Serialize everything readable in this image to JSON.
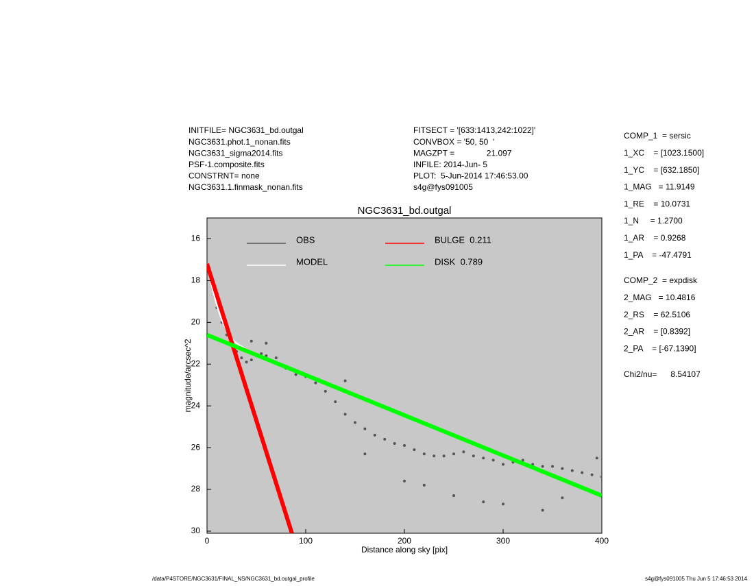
{
  "header": {
    "left": [
      "INITFILE= NGC3631_bd.outgal",
      "NGC3631.phot.1_nonan.fits",
      "NGC3631_sigma2014.fits",
      "PSF-1.composite.fits",
      "CONSTRNT= none",
      "NGC3631.1.finmask_nonan.fits"
    ],
    "middle": [
      "FITSECT = '[633:1413,242:1022]'",
      "CONVBOX = '50, 50  '",
      "MAGZPT =              21.097",
      "INFILE: 2014-Jun- 5",
      "PLOT:  5-Jun-2014 17:46:53.00",
      "s4g@fys091005"
    ]
  },
  "params": {
    "comp1": [
      "COMP_1  = sersic",
      "1_XC    = [1023.1500]",
      "1_YC    = [632.1850]",
      "1_MAG   = 11.9149",
      "1_RE    = 10.0731",
      "1_N     = 1.2700",
      "1_AR    = 0.9268",
      "1_PA    = -47.4791"
    ],
    "comp2": [
      "COMP_2  = expdisk",
      "2_MAG   = 10.4816",
      "2_RS    = 62.5106",
      "2_AR    = [0.8392]",
      "2_PA    = [-67.1390]"
    ],
    "chi": "Chi2/nu=      8.54107"
  },
  "footer": {
    "left": "/data/P4STORE/NGC3631/FINAL_NS/NGC3631_bd.outgal_profile",
    "right": "s4g@fys091005  Thu Jun  5 17:46:53 2014"
  },
  "chart_data": {
    "type": "scatter",
    "title": "NGC3631_bd.outgal",
    "x_label": "Distance along sky [pix]",
    "y_label": "magnitude/arcsec^2",
    "xlim": [
      0,
      400
    ],
    "ylim": [
      30.1,
      15
    ],
    "xticks": [
      0,
      100,
      200,
      300,
      400
    ],
    "yticks": [
      16,
      18,
      20,
      22,
      24,
      26,
      28,
      30
    ],
    "background": "#c8c8c8",
    "series": [
      {
        "name": "OBS",
        "kind": "points",
        "color": "#555555",
        "x": [
          5,
          10,
          15,
          20,
          25,
          30,
          35,
          40,
          45,
          50,
          55,
          60,
          70,
          80,
          90,
          100,
          110,
          120,
          130,
          140,
          150,
          160,
          170,
          180,
          190,
          200,
          210,
          220,
          230,
          240,
          250,
          260,
          270,
          280,
          290,
          300,
          310,
          320,
          330,
          340,
          350,
          360,
          370,
          380,
          390,
          400,
          45,
          60,
          140,
          160,
          200,
          220,
          250,
          280,
          300,
          340,
          360,
          380,
          395
        ],
        "values": [
          18.1,
          19.3,
          20.0,
          20.6,
          21.0,
          21.4,
          21.7,
          21.9,
          21.8,
          21.6,
          21.5,
          21.6,
          21.7,
          22.2,
          22.5,
          22.6,
          22.9,
          23.3,
          23.8,
          24.4,
          24.8,
          25.1,
          25.4,
          25.6,
          25.8,
          25.9,
          26.1,
          26.3,
          26.4,
          26.4,
          26.3,
          26.2,
          26.4,
          26.5,
          26.6,
          26.8,
          26.7,
          26.6,
          26.8,
          26.9,
          26.9,
          27.0,
          27.1,
          27.2,
          27.3,
          27.4,
          20.9,
          21.0,
          22.8,
          26.3,
          27.6,
          27.8,
          28.3,
          28.6,
          28.7,
          29.0,
          28.4,
          27.9,
          26.5
        ]
      },
      {
        "name": "MODEL",
        "kind": "line",
        "color": "#ffffff",
        "x": [
          0,
          5,
          10,
          15,
          20,
          25,
          30,
          40,
          60,
          100,
          200,
          300,
          400
        ],
        "values": [
          17.2,
          18.3,
          19.2,
          19.9,
          20.4,
          20.8,
          21.0,
          21.3,
          21.7,
          22.5,
          24.5,
          26.4,
          28.3
        ]
      },
      {
        "name": "BULGE  0.211",
        "kind": "band",
        "color": "#ff0000",
        "x": [
          0,
          86
        ],
        "values": [
          17.2,
          30.1
        ]
      },
      {
        "name": "DISK  0.789",
        "kind": "band",
        "color": "#00ff00",
        "x": [
          0,
          400
        ],
        "values": [
          20.6,
          28.3
        ]
      }
    ]
  }
}
